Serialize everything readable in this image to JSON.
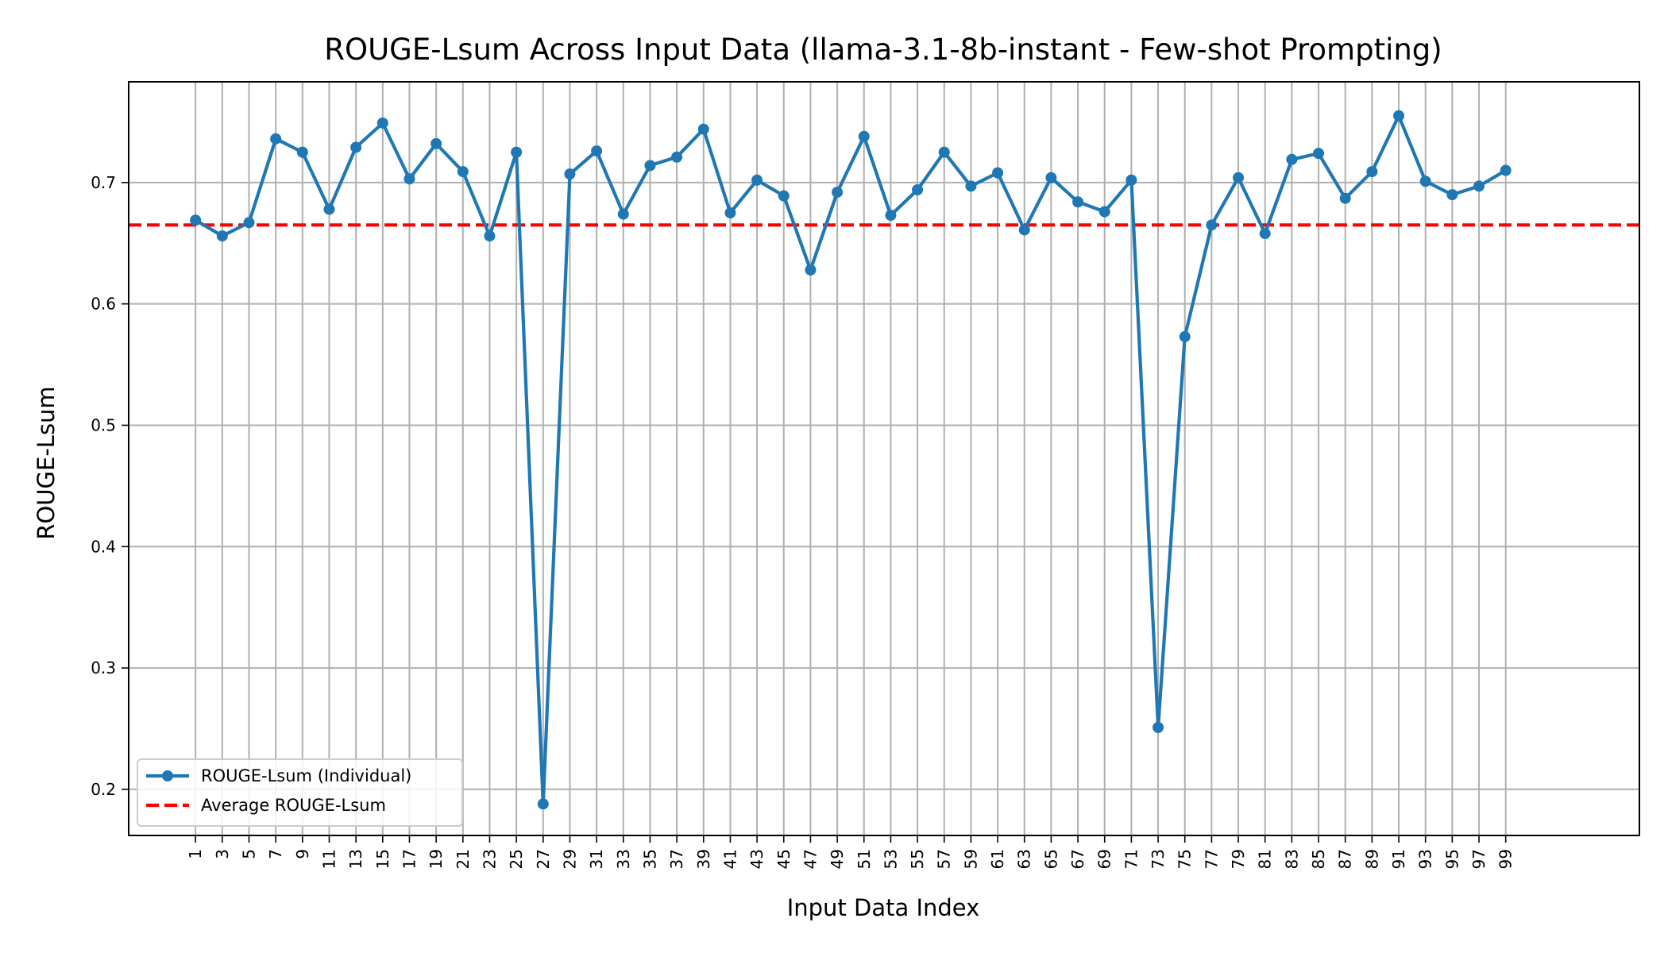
{
  "chart_data": {
    "type": "line",
    "title": "ROUGE-Lsum Across Input Data (llama-3.1-8b-instant - Few-shot Prompting)",
    "xlabel": "Input Data Index",
    "ylabel": "ROUGE-Lsum",
    "x": [
      1,
      3,
      5,
      7,
      9,
      11,
      13,
      15,
      17,
      19,
      21,
      23,
      25,
      27,
      29,
      31,
      33,
      35,
      37,
      39,
      41,
      43,
      45,
      47,
      49,
      51,
      53,
      55,
      57,
      59,
      61,
      63,
      65,
      67,
      69,
      71,
      73,
      75,
      77,
      79,
      81,
      83,
      85,
      87,
      89,
      91,
      93,
      95,
      97,
      99
    ],
    "x_tick_labels": [
      "1",
      "3",
      "5",
      "7",
      "9",
      "11",
      "13",
      "15",
      "17",
      "19",
      "21",
      "23",
      "25",
      "27",
      "29",
      "31",
      "33",
      "35",
      "37",
      "39",
      "41",
      "43",
      "45",
      "47",
      "49",
      "51",
      "53",
      "55",
      "57",
      "59",
      "61",
      "63",
      "65",
      "67",
      "69",
      "71",
      "73",
      "75",
      "77",
      "79",
      "81",
      "83",
      "85",
      "87",
      "89",
      "91",
      "93",
      "95",
      "97",
      "99"
    ],
    "xlim": [
      -4,
      109
    ],
    "ylim": [
      0.162,
      0.783
    ],
    "y_ticks": [
      0.2,
      0.3,
      0.4,
      0.5,
      0.6,
      0.7
    ],
    "y_tick_labels": [
      "0.2",
      "0.3",
      "0.4",
      "0.5",
      "0.6",
      "0.7"
    ],
    "grid": true,
    "legend_position": "lower-left",
    "series": [
      {
        "name": "ROUGE-Lsum (Individual)",
        "style": "solid-line-with-markers",
        "color": "#1f77b4",
        "values": [
          0.669,
          0.656,
          0.667,
          0.736,
          0.725,
          0.678,
          0.729,
          0.749,
          0.703,
          0.732,
          0.709,
          0.656,
          0.725,
          0.188,
          0.707,
          0.726,
          0.674,
          0.714,
          0.721,
          0.744,
          0.675,
          0.702,
          0.689,
          0.628,
          0.692,
          0.738,
          0.673,
          0.694,
          0.725,
          0.697,
          0.708,
          0.661,
          0.704,
          0.684,
          0.676,
          0.702,
          0.251,
          0.573,
          0.665,
          0.704,
          0.658,
          0.719,
          0.724,
          0.687,
          0.709,
          0.755,
          0.701,
          0.69,
          0.697,
          0.71
        ]
      },
      {
        "name": "Average ROUGE-Lsum",
        "style": "dashed-line",
        "color": "#ff0000",
        "value": 0.665
      }
    ]
  }
}
